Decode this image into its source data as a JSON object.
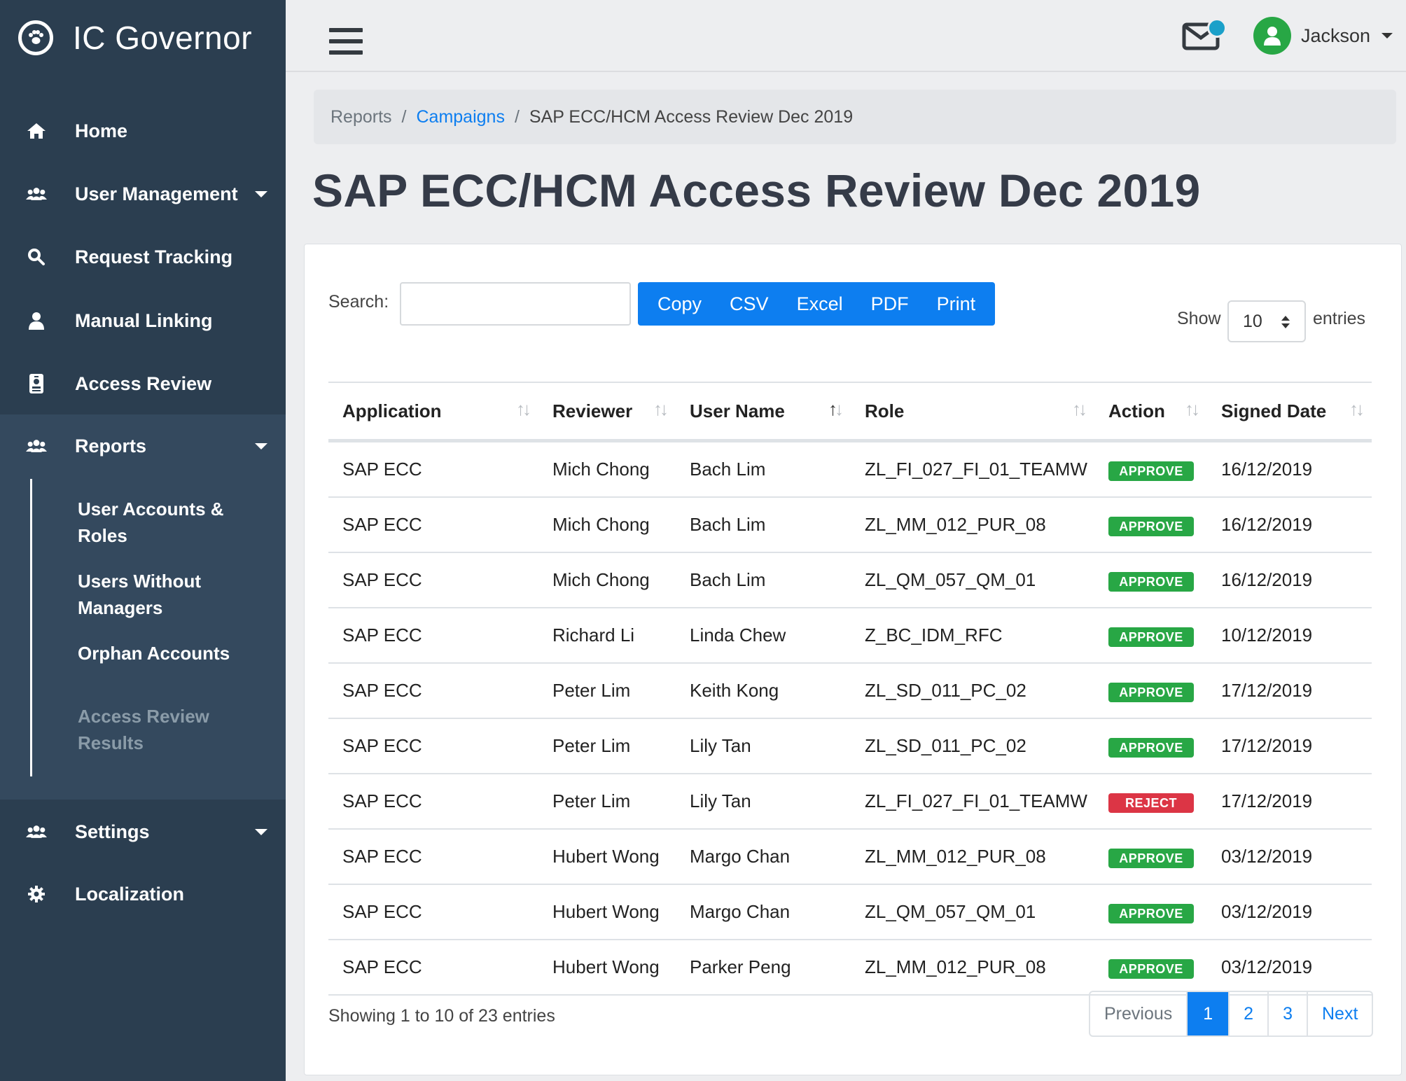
{
  "brand": {
    "title": "IC Governor",
    "logo_icon": "paw-icon"
  },
  "sidebar": {
    "items": [
      {
        "label": "Home",
        "icon": "home-icon"
      },
      {
        "label": "User Management",
        "icon": "users-icon",
        "has_caret": true
      },
      {
        "label": "Request Tracking",
        "icon": "search-icon"
      },
      {
        "label": "Manual Linking",
        "icon": "user-icon"
      },
      {
        "label": "Access Review",
        "icon": "id-badge-icon"
      },
      {
        "label": "Reports",
        "icon": "users-icon",
        "has_caret": true,
        "expanded": true
      },
      {
        "label": "Settings",
        "icon": "users-icon",
        "has_caret": true
      },
      {
        "label": "Localization",
        "icon": "gear-icon"
      }
    ],
    "reports_sub": [
      {
        "label_line1": "User Accounts &",
        "label_line2": "Roles"
      },
      {
        "label_line1": "Users Without",
        "label_line2": "Managers"
      },
      {
        "label_line1": "Orphan Accounts",
        "label_line2": ""
      },
      {
        "label_line1": "Access Review",
        "label_line2": "Results",
        "active": true
      }
    ]
  },
  "topbar": {
    "user_name": "Jackson",
    "notification_color": "#1ba0c9"
  },
  "breadcrumb": {
    "items": [
      "Reports",
      "Campaigns",
      "SAP ECC/HCM Access Review Dec 2019"
    ]
  },
  "page": {
    "title": "SAP ECC/HCM Access Review Dec 2019"
  },
  "toolbar": {
    "search_label": "Search:",
    "search_value": "",
    "buttons": [
      "Copy",
      "CSV",
      "Excel",
      "PDF",
      "Print"
    ],
    "show_label": "Show",
    "page_size": "10",
    "entries_label": "entries"
  },
  "table": {
    "columns": [
      "Application",
      "Reviewer",
      "User Name",
      "Role",
      "Action",
      "Signed Date"
    ],
    "sorted_column": "User Name",
    "rows": [
      [
        "SAP ECC",
        "Mich Chong",
        "Bach Lim",
        "ZL_FI_027_FI_01_TEAMW",
        "APPROVE",
        "16/12/2019"
      ],
      [
        "SAP ECC",
        "Mich Chong",
        "Bach Lim",
        "ZL_MM_012_PUR_08",
        "APPROVE",
        "16/12/2019"
      ],
      [
        "SAP ECC",
        "Mich Chong",
        "Bach Lim",
        "ZL_QM_057_QM_01",
        "APPROVE",
        "16/12/2019"
      ],
      [
        "SAP ECC",
        "Richard Li",
        "Linda Chew",
        "Z_BC_IDM_RFC",
        "APPROVE",
        "10/12/2019"
      ],
      [
        "SAP ECC",
        "Peter Lim",
        "Keith Kong",
        "ZL_SD_011_PC_02",
        "APPROVE",
        "17/12/2019"
      ],
      [
        "SAP ECC",
        "Peter Lim",
        "Lily Tan",
        "ZL_SD_011_PC_02",
        "APPROVE",
        "17/12/2019"
      ],
      [
        "SAP ECC",
        "Peter Lim",
        "Lily Tan",
        "ZL_FI_027_FI_01_TEAMW",
        "REJECT",
        "17/12/2019"
      ],
      [
        "SAP ECC",
        "Hubert Wong",
        "Margo Chan",
        "ZL_MM_012_PUR_08",
        "APPROVE",
        "03/12/2019"
      ],
      [
        "SAP ECC",
        "Hubert Wong",
        "Margo Chan",
        "ZL_QM_057_QM_01",
        "APPROVE",
        "03/12/2019"
      ],
      [
        "SAP ECC",
        "Hubert Wong",
        "Parker Peng",
        "ZL_MM_012_PUR_08",
        "APPROVE",
        "03/12/2019"
      ]
    ],
    "action_colors": {
      "APPROVE": "#28a745",
      "REJECT": "#dc3545"
    }
  },
  "footer": {
    "showing": "Showing 1 to 10 of 23 entries",
    "pagination": [
      "Previous",
      "1",
      "2",
      "3",
      "Next"
    ],
    "active_page": "1"
  }
}
